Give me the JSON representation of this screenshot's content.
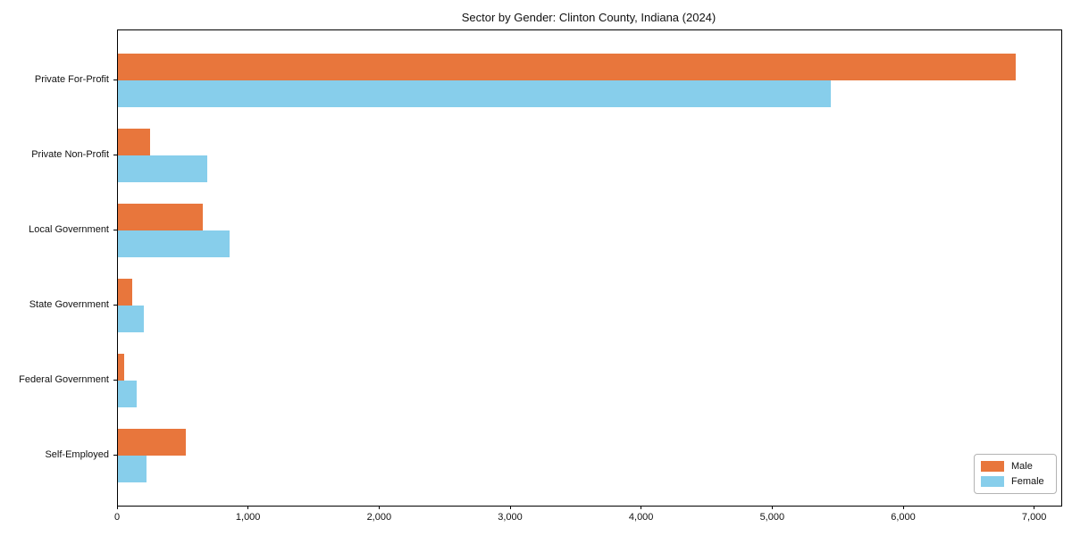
{
  "chart_data": {
    "type": "bar",
    "orientation": "horizontal",
    "title": "Sector by Gender: Clinton County, Indiana (2024)",
    "xlabel": "",
    "ylabel": "",
    "grid": false,
    "categories": [
      "Private For-Profit",
      "Private Non-Profit",
      "Local Government",
      "State Government",
      "Federal Government",
      "Self-Employed"
    ],
    "series": [
      {
        "name": "Male",
        "color": "#e8763c",
        "values": [
          6850,
          245,
          645,
          110,
          50,
          515
        ]
      },
      {
        "name": "Female",
        "color": "#87ceeb",
        "values": [
          5440,
          680,
          850,
          200,
          145,
          220
        ]
      }
    ],
    "xlim": [
      0,
      7200
    ],
    "xticks": [
      0,
      1000,
      2000,
      3000,
      4000,
      5000,
      6000,
      7000
    ],
    "xtick_labels": [
      "0",
      "1,000",
      "2,000",
      "3,000",
      "4,000",
      "5,000",
      "6,000",
      "7,000"
    ],
    "legend": {
      "position": "lower right",
      "entries": [
        "Male",
        "Female"
      ]
    }
  }
}
